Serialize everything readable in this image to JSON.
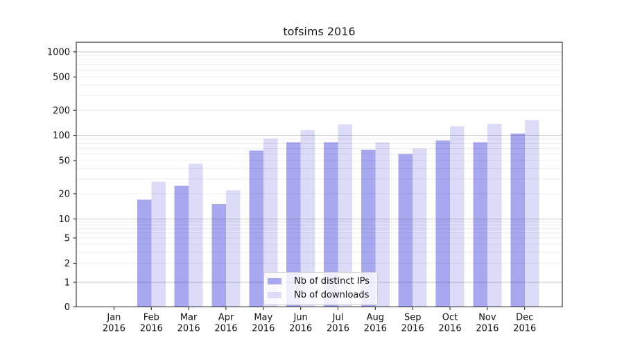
{
  "title": "tofsims 2016",
  "legend": {
    "items": [
      {
        "label": "Nb of distinct IPs",
        "color": "#a8a8f0"
      },
      {
        "label": "Nb of downloads",
        "color": "#dcdcf9"
      }
    ]
  },
  "axes": {
    "y_tick_labels": [
      "0",
      "1",
      "2",
      "5",
      "10",
      "20",
      "50",
      "100",
      "200",
      "500",
      "1000"
    ],
    "x_tick_labels": [
      "Jan 2016",
      "Feb 2016",
      "Mar 2016",
      "Apr 2016",
      "May 2016",
      "Jun 2016",
      "Jul 2016",
      "Aug 2016",
      "Sep 2016",
      "Oct 2016",
      "Nov 2016",
      "Dec 2016"
    ]
  },
  "colors": {
    "series_distinct_ips": "#a8a8f0",
    "series_downloads": "#dcdcf9",
    "major_gridline": "rgba(0,0,0,0.22)",
    "minor_gridline": "rgba(0,0,0,0.07)",
    "axis": "#1a1a1a",
    "text": "#111111"
  },
  "chart_data": {
    "type": "bar",
    "title": "tofsims 2016",
    "categories": [
      "Jan 2016",
      "Feb 2016",
      "Mar 2016",
      "Apr 2016",
      "May 2016",
      "Jun 2016",
      "Jul 2016",
      "Aug 2016",
      "Sep 2016",
      "Oct 2016",
      "Nov 2016",
      "Dec 2016"
    ],
    "series": [
      {
        "name": "Nb of distinct IPs",
        "color": "#a8a8f0",
        "values": [
          0,
          17,
          25,
          15,
          66,
          83,
          83,
          67,
          60,
          87,
          83,
          105
        ]
      },
      {
        "name": "Nb of downloads",
        "color": "#dcdcf9",
        "values": [
          0,
          28,
          46,
          22,
          91,
          116,
          136,
          83,
          70,
          129,
          137,
          152
        ]
      }
    ],
    "xlabel": "",
    "ylabel": "",
    "yscale": "symlog",
    "y_ticks": [
      0,
      1,
      2,
      5,
      10,
      20,
      50,
      100,
      200,
      500,
      1000
    ],
    "ylim": [
      0,
      1300
    ],
    "grid": true,
    "legend_position": "lower center"
  }
}
